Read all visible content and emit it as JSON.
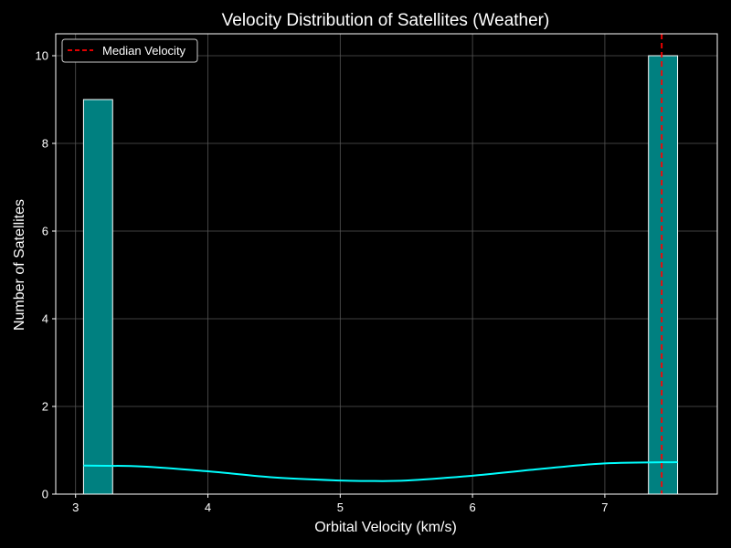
{
  "chart_data": {
    "type": "bar",
    "title": "Velocity Distribution of Satellites (Weather)",
    "xlabel": "Orbital Velocity (km/s)",
    "ylabel": "Number of Satellites",
    "xlim": [
      2.85,
      7.85
    ],
    "ylim": [
      0,
      10.5
    ],
    "xticks": [
      3,
      4,
      5,
      6,
      7
    ],
    "yticks": [
      0,
      2,
      4,
      6,
      8,
      10
    ],
    "grid": true,
    "legend_position": "top-left",
    "bins": [
      {
        "start": 3.06,
        "end": 3.28,
        "count": 9
      },
      {
        "start": 7.33,
        "end": 7.55,
        "count": 10
      }
    ],
    "kde": {
      "x": [
        3.06,
        3.5,
        4.0,
        4.5,
        5.0,
        5.2,
        5.5,
        6.0,
        6.5,
        7.0,
        7.55
      ],
      "y": [
        0.65,
        0.63,
        0.52,
        0.38,
        0.31,
        0.3,
        0.31,
        0.42,
        0.57,
        0.7,
        0.73
      ]
    },
    "median": {
      "value": 7.43,
      "label": "Median Velocity"
    },
    "colors": {
      "background": "#000000",
      "bar_fill": "#008080",
      "bar_edge": "#ffffff",
      "kde_line": "#00ffff",
      "median_line": "#ff0000",
      "grid": "#555555",
      "axes": "#ffffff",
      "text": "#ffffff"
    }
  }
}
